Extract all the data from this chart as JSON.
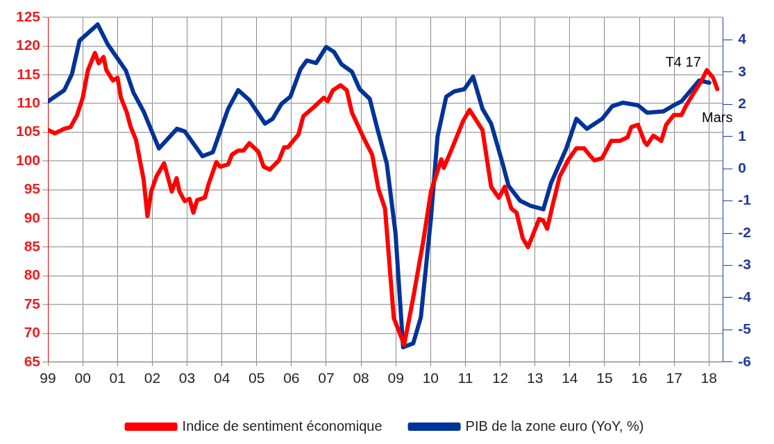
{
  "chart_data": {
    "type": "line",
    "xlim": [
      1999,
      2018.4
    ],
    "xticks": [
      {
        "value": 1999,
        "label": "99"
      },
      {
        "value": 2000,
        "label": "00"
      },
      {
        "value": 2001,
        "label": "01"
      },
      {
        "value": 2002,
        "label": "02"
      },
      {
        "value": 2003,
        "label": "03"
      },
      {
        "value": 2004,
        "label": "04"
      },
      {
        "value": 2005,
        "label": "05"
      },
      {
        "value": 2006,
        "label": "06"
      },
      {
        "value": 2007,
        "label": "07"
      },
      {
        "value": 2008,
        "label": "08"
      },
      {
        "value": 2009,
        "label": "09"
      },
      {
        "value": 2010,
        "label": "10"
      },
      {
        "value": 2011,
        "label": "11"
      },
      {
        "value": 2012,
        "label": "12"
      },
      {
        "value": 2013,
        "label": "13"
      },
      {
        "value": 2014,
        "label": "14"
      },
      {
        "value": 2015,
        "label": "15"
      },
      {
        "value": 2016,
        "label": "16"
      },
      {
        "value": 2017,
        "label": "17"
      },
      {
        "value": 2018,
        "label": "18"
      }
    ],
    "ylim": [
      65,
      125
    ],
    "yticks": [
      65,
      70,
      75,
      80,
      85,
      90,
      95,
      100,
      105,
      110,
      115,
      120,
      125
    ],
    "y2lim": [
      -6,
      4.7
    ],
    "y2ticks": [
      -6,
      -5,
      -4,
      -3,
      -2,
      -1,
      0,
      1,
      2,
      3,
      4
    ],
    "grid": true,
    "legend": "bottom",
    "marker": "none",
    "line_style": "solid",
    "series": [
      {
        "name": "Indice de sentiment économique",
        "color": "#ff0000",
        "x": [
          1999.0,
          1999.2,
          1999.47,
          1999.65,
          1999.84,
          2000.0,
          2000.15,
          2000.35,
          2000.46,
          2000.6,
          2000.68,
          2000.87,
          2001.0,
          2001.1,
          2001.27,
          2001.38,
          2001.53,
          2001.75,
          2001.86,
          2001.97,
          2002.12,
          2002.34,
          2002.56,
          2002.7,
          2002.78,
          2002.93,
          2003.07,
          2003.18,
          2003.29,
          2003.51,
          2003.62,
          2003.84,
          2003.95,
          2004.18,
          2004.29,
          2004.47,
          2004.62,
          2004.79,
          2005.05,
          2005.2,
          2005.38,
          2005.64,
          2005.79,
          2005.9,
          2006.2,
          2006.34,
          2006.63,
          2006.93,
          2007.04,
          2007.19,
          2007.41,
          2007.59,
          2007.74,
          2008.1,
          2008.32,
          2008.5,
          2008.69,
          2008.94,
          2009.24,
          2009.5,
          2009.79,
          2010.01,
          2010.31,
          2010.38,
          2010.63,
          2010.93,
          2011.12,
          2011.49,
          2011.74,
          2011.96,
          2012.13,
          2012.32,
          2012.47,
          2012.65,
          2012.8,
          2013.12,
          2013.23,
          2013.35,
          2013.5,
          2013.71,
          2013.97,
          2014.19,
          2014.41,
          2014.56,
          2014.71,
          2014.93,
          2015.19,
          2015.44,
          2015.66,
          2015.77,
          2015.96,
          2016.15,
          2016.22,
          2016.4,
          2016.63,
          2016.77,
          2016.99,
          2017.21,
          2017.35,
          2017.57,
          2017.79,
          2017.94,
          2018.12,
          2018.24
        ],
        "values": [
          105.4,
          104.8,
          105.6,
          105.9,
          108,
          111,
          115.8,
          118.8,
          117,
          118.1,
          115.8,
          114,
          114.5,
          111,
          108.4,
          105.9,
          103.7,
          96.8,
          90.4,
          94.7,
          97.3,
          99.6,
          94.7,
          97,
          94.7,
          93,
          93.4,
          91,
          93.2,
          93.6,
          96,
          99.8,
          99,
          99.4,
          101.1,
          101.8,
          101.8,
          103.1,
          101.6,
          99,
          98.5,
          100.1,
          102.4,
          102.4,
          104.6,
          107.8,
          109.3,
          111,
          110.4,
          112.3,
          113.2,
          112.3,
          108.4,
          103.7,
          101.1,
          95.1,
          91.7,
          72.7,
          68,
          76.2,
          86.1,
          94.7,
          100.3,
          98.8,
          102.4,
          106.9,
          108.9,
          105.4,
          95.5,
          93.6,
          95.5,
          91.7,
          91,
          86.5,
          85,
          89.9,
          89.7,
          88.2,
          92.1,
          97.3,
          100.3,
          102.2,
          102.2,
          101.1,
          100.1,
          100.5,
          103.5,
          103.5,
          104.1,
          105.9,
          106.3,
          103.3,
          102.8,
          104.4,
          103.5,
          106.3,
          108,
          108,
          109.7,
          111.9,
          114,
          115.8,
          114.5,
          112.5
        ]
      },
      {
        "name": "PIB de la zone euro (YoY, %)",
        "color": "#003399",
        "axis": "y2",
        "x": [
          1999.0,
          1999.47,
          1999.69,
          1999.91,
          2000.43,
          2000.72,
          2001.24,
          2001.46,
          2001.75,
          2002.19,
          2002.71,
          2002.93,
          2003.44,
          2003.74,
          2004.18,
          2004.47,
          2004.79,
          2005.24,
          2005.46,
          2005.71,
          2005.97,
          2006.26,
          2006.44,
          2006.71,
          2007.0,
          2007.22,
          2007.44,
          2007.74,
          2007.96,
          2008.25,
          2008.47,
          2008.74,
          2008.99,
          2009.21,
          2009.5,
          2009.72,
          2010.01,
          2010.2,
          2010.45,
          2010.68,
          2010.97,
          2011.22,
          2011.49,
          2011.74,
          2012.07,
          2012.24,
          2012.57,
          2012.87,
          2013.24,
          2013.46,
          2013.9,
          2014.19,
          2014.49,
          2014.93,
          2015.22,
          2015.52,
          2015.96,
          2016.22,
          2016.69,
          2016.99,
          2017.21,
          2017.72,
          2018.01
        ],
        "values": [
          2.09,
          2.44,
          2.94,
          3.98,
          4.48,
          3.86,
          3.05,
          2.36,
          1.78,
          0.63,
          1.24,
          1.16,
          0.39,
          0.51,
          1.86,
          2.44,
          2.13,
          1.4,
          1.55,
          2.01,
          2.24,
          3.09,
          3.36,
          3.28,
          3.78,
          3.63,
          3.24,
          3.01,
          2.47,
          2.17,
          1.24,
          0.16,
          -1.99,
          -5.54,
          -5.42,
          -4.61,
          -1.53,
          1.01,
          2.24,
          2.4,
          2.47,
          2.86,
          1.86,
          1.4,
          0.16,
          -0.53,
          -0.99,
          -1.15,
          -1.26,
          -0.45,
          0.63,
          1.55,
          1.24,
          1.55,
          1.94,
          2.05,
          1.97,
          1.74,
          1.78,
          1.97,
          2.09,
          2.74,
          2.67
        ]
      }
    ],
    "annotations": [
      {
        "text": "T4 17",
        "x": 2018.01,
        "y": 113.7
      },
      {
        "text": "Mars",
        "x": 2018.24,
        "y": 112.5
      }
    ]
  }
}
